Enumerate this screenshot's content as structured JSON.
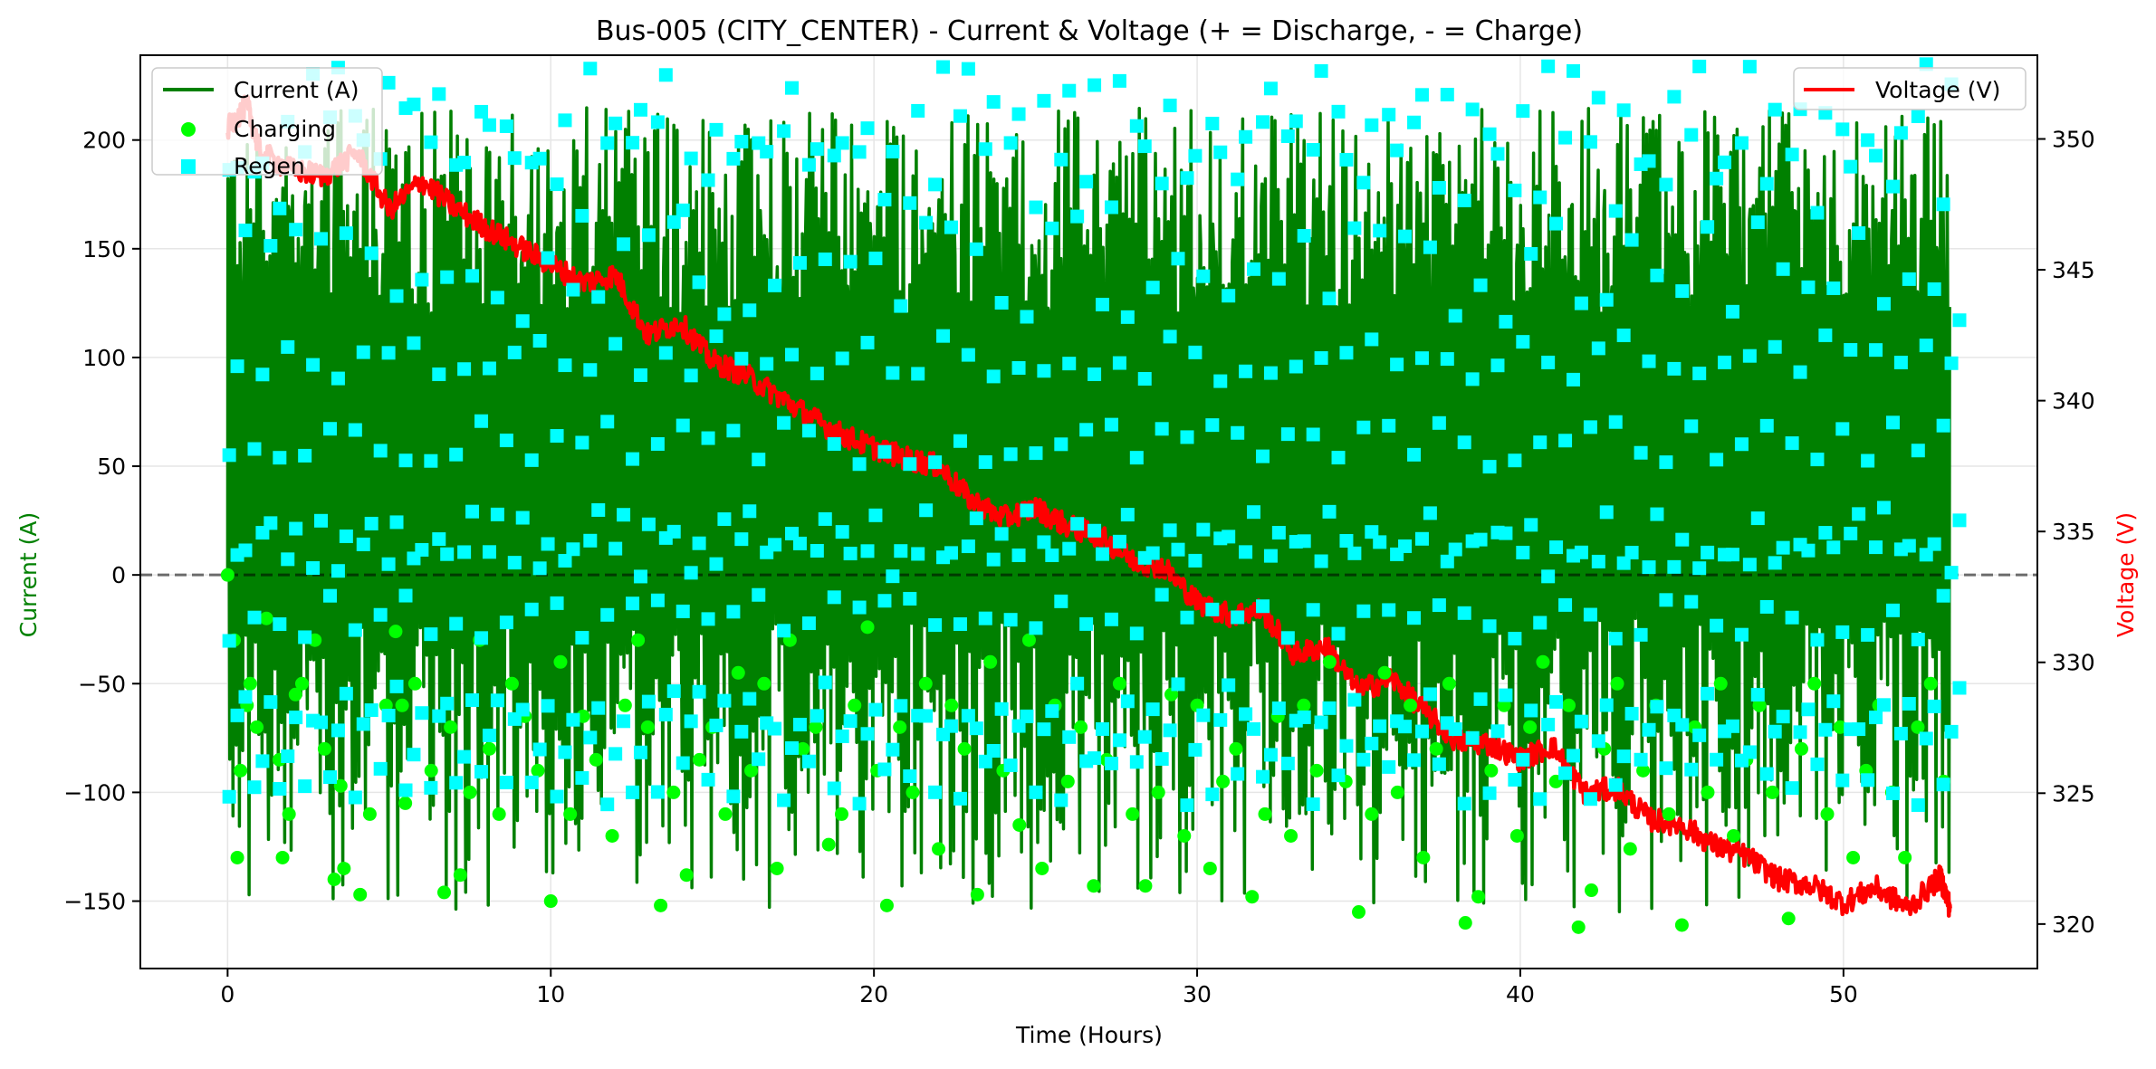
{
  "chart_data": {
    "type": "line",
    "title": "Bus-005 (CITY_CENTER) - Current & Voltage (+ = Discharge, - = Charge)",
    "xlabel": "Time (Hours)",
    "ylabel_left": "Current (A)",
    "ylabel_right": "Voltage (V)",
    "xlim": [
      -2.7,
      56.0
    ],
    "ylim_left": [
      -181,
      239
    ],
    "ylim_right": [
      318.3,
      353.2
    ],
    "xticks": [
      0,
      10,
      20,
      30,
      40,
      50
    ],
    "yticks_left": [
      -150,
      -100,
      -50,
      0,
      50,
      100,
      150,
      200
    ],
    "yticks_right": [
      320,
      325,
      330,
      335,
      340,
      345,
      350
    ],
    "grid": true,
    "zero_line": {
      "y": 0,
      "style": "dashed"
    },
    "legend_left": {
      "placement": "top-left",
      "entries": [
        "Current (A)",
        "Charging",
        "Regen"
      ]
    },
    "legend_right": {
      "placement": "top-right",
      "entries": [
        "Voltage (V)"
      ]
    },
    "series": [
      {
        "name": "Current (A)",
        "axis": "left",
        "kind": "line",
        "color": "#008000",
        "pattern": "oscillating",
        "x_range": [
          0,
          53.3
        ],
        "cycle_hours": 0.1,
        "min": -155,
        "max": 215,
        "typical_low": -70,
        "typical_high": 190
      },
      {
        "name": "Charging",
        "axis": "left",
        "kind": "scatter",
        "marker": "circle",
        "color": "#00ff00",
        "points": [
          [
            0.0,
            0
          ],
          [
            0.2,
            -30
          ],
          [
            0.3,
            -130
          ],
          [
            0.4,
            -90
          ],
          [
            0.6,
            -60
          ],
          [
            0.7,
            -50
          ],
          [
            0.9,
            -70
          ],
          [
            1.2,
            -20
          ],
          [
            1.6,
            -85
          ],
          [
            1.7,
            -130
          ],
          [
            1.9,
            -110
          ],
          [
            2.1,
            -55
          ],
          [
            2.3,
            -50
          ],
          [
            2.7,
            -30
          ],
          [
            3.0,
            -80
          ],
          [
            3.3,
            -140
          ],
          [
            3.5,
            -97
          ],
          [
            3.6,
            -135
          ],
          [
            4.1,
            -147
          ],
          [
            4.4,
            -110
          ],
          [
            4.9,
            -60
          ],
          [
            5.2,
            -26
          ],
          [
            5.4,
            -60
          ],
          [
            5.5,
            -105
          ],
          [
            5.8,
            -50
          ],
          [
            6.3,
            -90
          ],
          [
            6.7,
            -146
          ],
          [
            6.9,
            -70
          ],
          [
            7.2,
            -138
          ],
          [
            7.5,
            -100
          ],
          [
            7.8,
            -30
          ],
          [
            8.1,
            -80
          ],
          [
            8.4,
            -110
          ],
          [
            8.8,
            -50
          ],
          [
            9.2,
            -65
          ],
          [
            9.6,
            -90
          ],
          [
            10.0,
            -150
          ],
          [
            10.3,
            -40
          ],
          [
            10.6,
            -110
          ],
          [
            11.0,
            -65
          ],
          [
            11.4,
            -85
          ],
          [
            11.9,
            -120
          ],
          [
            12.3,
            -60
          ],
          [
            12.7,
            -30
          ],
          [
            13.0,
            -70
          ],
          [
            13.4,
            -152
          ],
          [
            13.8,
            -100
          ],
          [
            14.2,
            -138
          ],
          [
            14.6,
            -85
          ],
          [
            15.0,
            -70
          ],
          [
            15.4,
            -110
          ],
          [
            15.8,
            -45
          ],
          [
            16.2,
            -90
          ],
          [
            16.6,
            -50
          ],
          [
            17.0,
            -135
          ],
          [
            17.4,
            -30
          ],
          [
            17.8,
            -80
          ],
          [
            18.2,
            -70
          ],
          [
            18.6,
            -124
          ],
          [
            19.0,
            -110
          ],
          [
            19.4,
            -60
          ],
          [
            19.8,
            -24
          ],
          [
            20.1,
            -90
          ],
          [
            20.4,
            -152
          ],
          [
            20.8,
            -70
          ],
          [
            21.2,
            -100
          ],
          [
            21.6,
            -50
          ],
          [
            22.0,
            -126
          ],
          [
            22.4,
            -60
          ],
          [
            22.8,
            -80
          ],
          [
            23.2,
            -147
          ],
          [
            23.6,
            -40
          ],
          [
            24.0,
            -90
          ],
          [
            24.5,
            -115
          ],
          [
            24.8,
            -30
          ],
          [
            25.2,
            -135
          ],
          [
            25.6,
            -60
          ],
          [
            26.0,
            -95
          ],
          [
            26.4,
            -70
          ],
          [
            26.8,
            -143
          ],
          [
            27.2,
            -85
          ],
          [
            27.6,
            -50
          ],
          [
            28.0,
            -110
          ],
          [
            28.4,
            -143
          ],
          [
            28.8,
            -100
          ],
          [
            29.2,
            -55
          ],
          [
            29.6,
            -120
          ],
          [
            30.0,
            -60
          ],
          [
            30.4,
            -135
          ],
          [
            30.8,
            -95
          ],
          [
            31.2,
            -80
          ],
          [
            31.7,
            -148
          ],
          [
            32.1,
            -110
          ],
          [
            32.5,
            -65
          ],
          [
            32.9,
            -120
          ],
          [
            33.3,
            -60
          ],
          [
            33.7,
            -90
          ],
          [
            34.1,
            -40
          ],
          [
            34.6,
            -95
          ],
          [
            35.0,
            -155
          ],
          [
            35.4,
            -110
          ],
          [
            35.8,
            -45
          ],
          [
            36.2,
            -100
          ],
          [
            36.6,
            -60
          ],
          [
            37.0,
            -130
          ],
          [
            37.4,
            -80
          ],
          [
            37.8,
            -50
          ],
          [
            38.3,
            -160
          ],
          [
            38.7,
            -148
          ],
          [
            39.1,
            -90
          ],
          [
            39.5,
            -60
          ],
          [
            39.9,
            -120
          ],
          [
            40.3,
            -70
          ],
          [
            40.7,
            -40
          ],
          [
            41.1,
            -95
          ],
          [
            41.5,
            -60
          ],
          [
            41.8,
            -162
          ],
          [
            42.2,
            -145
          ],
          [
            42.6,
            -80
          ],
          [
            43.0,
            -50
          ],
          [
            43.4,
            -126
          ],
          [
            43.8,
            -90
          ],
          [
            44.2,
            -60
          ],
          [
            44.6,
            -110
          ],
          [
            45.0,
            -161
          ],
          [
            45.4,
            -70
          ],
          [
            45.8,
            -100
          ],
          [
            46.2,
            -50
          ],
          [
            46.6,
            -120
          ],
          [
            47.0,
            -85
          ],
          [
            47.4,
            -60
          ],
          [
            47.8,
            -100
          ],
          [
            48.3,
            -158
          ],
          [
            48.7,
            -80
          ],
          [
            49.1,
            -50
          ],
          [
            49.5,
            -110
          ],
          [
            49.9,
            -70
          ],
          [
            50.3,
            -130
          ],
          [
            50.7,
            -90
          ],
          [
            51.1,
            -60
          ],
          [
            51.5,
            -100
          ],
          [
            51.9,
            -130
          ],
          [
            52.3,
            -70
          ],
          [
            52.7,
            -50
          ],
          [
            53.1,
            -95
          ]
        ]
      },
      {
        "name": "Regen",
        "axis": "left",
        "kind": "scatter",
        "marker": "square",
        "color": "#00ffff",
        "note_bands": [
          -95,
          -75,
          -60,
          -20,
          10,
          20,
          60,
          100,
          140,
          190,
          210
        ],
        "band_x_start": 0.05,
        "band_x_end": 53.6,
        "band_step": 0.78
      },
      {
        "name": "Voltage (V)",
        "axis": "right",
        "kind": "line",
        "color": "#ff0000",
        "trend": [
          [
            0.0,
            350.4
          ],
          [
            0.6,
            351.3
          ],
          [
            1.0,
            349.5
          ],
          [
            2.0,
            348.8
          ],
          [
            3.0,
            348.6
          ],
          [
            4.0,
            349.5
          ],
          [
            5.0,
            347.3
          ],
          [
            6.0,
            348.4
          ],
          [
            7.0,
            347.4
          ],
          [
            8.0,
            346.6
          ],
          [
            9.0,
            345.9
          ],
          [
            10.0,
            345.2
          ],
          [
            11.0,
            344.5
          ],
          [
            12.0,
            344.8
          ],
          [
            13.0,
            342.5
          ],
          [
            14.0,
            343.0
          ],
          [
            15.0,
            341.5
          ],
          [
            16.0,
            341.0
          ],
          [
            17.0,
            340.2
          ],
          [
            18.0,
            339.4
          ],
          [
            19.0,
            338.7
          ],
          [
            20.0,
            338.2
          ],
          [
            21.0,
            337.8
          ],
          [
            22.0,
            337.5
          ],
          [
            23.0,
            336.2
          ],
          [
            24.0,
            335.5
          ],
          [
            25.0,
            335.9
          ],
          [
            26.0,
            335.2
          ],
          [
            27.0,
            334.8
          ],
          [
            28.0,
            333.9
          ],
          [
            29.0,
            333.6
          ],
          [
            30.0,
            332.3
          ],
          [
            31.0,
            331.8
          ],
          [
            32.0,
            332.0
          ],
          [
            33.0,
            330.3
          ],
          [
            34.0,
            330.6
          ],
          [
            35.0,
            328.9
          ],
          [
            36.0,
            329.4
          ],
          [
            37.0,
            328.2
          ],
          [
            38.0,
            327.0
          ],
          [
            39.0,
            326.9
          ],
          [
            40.0,
            326.3
          ],
          [
            41.0,
            326.8
          ],
          [
            42.0,
            325.0
          ],
          [
            43.0,
            325.2
          ],
          [
            44.0,
            324.0
          ],
          [
            45.0,
            323.8
          ],
          [
            46.0,
            323.0
          ],
          [
            47.0,
            322.6
          ],
          [
            48.0,
            321.7
          ],
          [
            49.0,
            321.5
          ],
          [
            50.0,
            320.8
          ],
          [
            51.0,
            321.4
          ],
          [
            52.0,
            320.6
          ],
          [
            53.0,
            321.8
          ],
          [
            53.3,
            320.6
          ]
        ]
      }
    ]
  }
}
